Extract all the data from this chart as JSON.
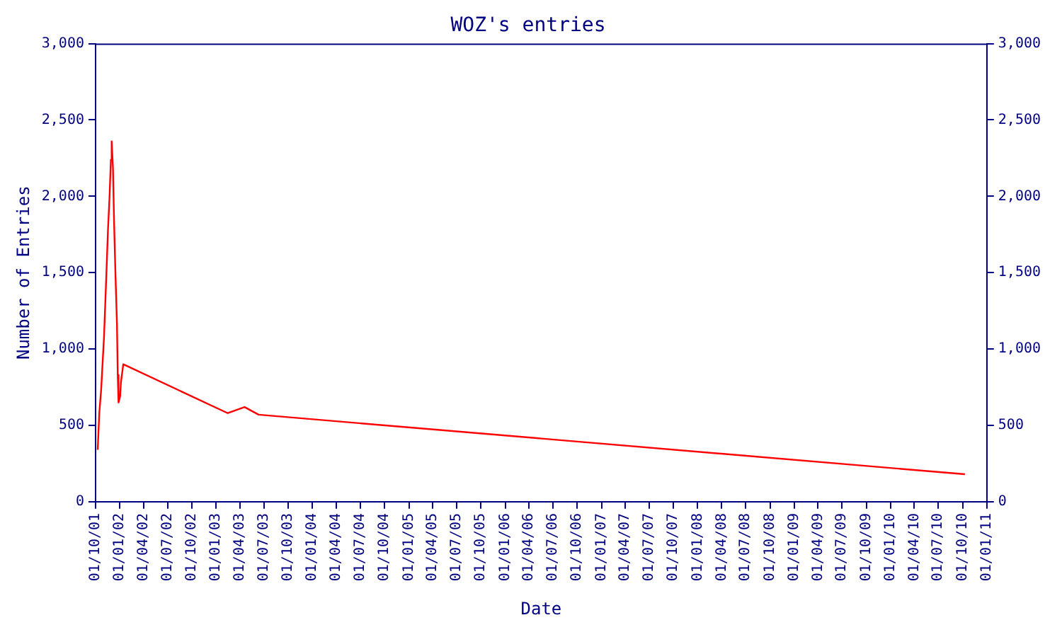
{
  "chart_data": {
    "type": "line",
    "title": "WOZ's entries",
    "xlabel": "Date",
    "ylabel": "Number of Entries",
    "x": [
      "2001-10-09",
      "2001-10-15",
      "2001-10-22",
      "2001-10-27",
      "2001-11-02",
      "2001-11-07",
      "2001-11-12",
      "2001-11-17",
      "2001-11-23",
      "2001-11-28",
      "2001-12-01",
      "2001-12-06",
      "2001-12-10",
      "2001-12-15",
      "2001-12-21",
      "2001-12-24",
      "2001-12-27",
      "2002-01-02",
      "2002-01-05",
      "2002-01-11",
      "2002-01-14",
      "2003-02-14",
      "2003-04-19",
      "2003-06-11",
      "2010-10-10"
    ],
    "series": [
      {
        "color": "#ff0000",
        "values": [
          340,
          580,
          730,
          890,
          1080,
          1310,
          1540,
          1780,
          2000,
          2240,
          2360,
          2180,
          1840,
          1510,
          1170,
          830,
          650,
          690,
          780,
          860,
          900,
          580,
          620,
          570,
          180
        ]
      }
    ],
    "xlim": [
      "2001-10-01",
      "2011-01-01"
    ],
    "xticks": [
      {
        "value": "2001-10-01",
        "label": "01/10/01"
      },
      {
        "value": "2002-01-01",
        "label": "01/01/02"
      },
      {
        "value": "2002-04-01",
        "label": "01/04/02"
      },
      {
        "value": "2002-07-01",
        "label": "01/07/02"
      },
      {
        "value": "2002-10-01",
        "label": "01/10/02"
      },
      {
        "value": "2003-01-01",
        "label": "01/01/03"
      },
      {
        "value": "2003-04-01",
        "label": "01/04/03"
      },
      {
        "value": "2003-07-01",
        "label": "01/07/03"
      },
      {
        "value": "2003-10-01",
        "label": "01/10/03"
      },
      {
        "value": "2004-01-01",
        "label": "01/01/04"
      },
      {
        "value": "2004-04-01",
        "label": "01/04/04"
      },
      {
        "value": "2004-07-01",
        "label": "01/07/04"
      },
      {
        "value": "2004-10-01",
        "label": "01/10/04"
      },
      {
        "value": "2005-01-01",
        "label": "01/01/05"
      },
      {
        "value": "2005-04-01",
        "label": "01/04/05"
      },
      {
        "value": "2005-07-01",
        "label": "01/07/05"
      },
      {
        "value": "2005-10-01",
        "label": "01/10/05"
      },
      {
        "value": "2006-01-01",
        "label": "01/01/06"
      },
      {
        "value": "2006-04-01",
        "label": "01/04/06"
      },
      {
        "value": "2006-07-01",
        "label": "01/07/06"
      },
      {
        "value": "2006-10-01",
        "label": "01/10/06"
      },
      {
        "value": "2007-01-01",
        "label": "01/01/07"
      },
      {
        "value": "2007-04-01",
        "label": "01/04/07"
      },
      {
        "value": "2007-07-01",
        "label": "01/07/07"
      },
      {
        "value": "2007-10-01",
        "label": "01/10/07"
      },
      {
        "value": "2008-01-01",
        "label": "01/01/08"
      },
      {
        "value": "2008-04-01",
        "label": "01/04/08"
      },
      {
        "value": "2008-07-01",
        "label": "01/07/08"
      },
      {
        "value": "2008-10-01",
        "label": "01/10/08"
      },
      {
        "value": "2009-01-01",
        "label": "01/01/09"
      },
      {
        "value": "2009-04-01",
        "label": "01/04/09"
      },
      {
        "value": "2009-07-01",
        "label": "01/07/09"
      },
      {
        "value": "2009-10-01",
        "label": "01/10/09"
      },
      {
        "value": "2010-01-01",
        "label": "01/01/10"
      },
      {
        "value": "2010-04-01",
        "label": "01/04/10"
      },
      {
        "value": "2010-07-01",
        "label": "01/07/10"
      },
      {
        "value": "2010-10-01",
        "label": "01/10/10"
      },
      {
        "value": "2011-01-01",
        "label": "01/01/11"
      }
    ],
    "ylim": [
      0,
      3000
    ],
    "yticks": [
      0,
      500,
      {
        "value": 1000,
        "label": "1,000"
      },
      {
        "value": 1500,
        "label": "1,500"
      },
      {
        "value": 2000,
        "label": "2,000"
      },
      {
        "value": 2500,
        "label": "2,500"
      },
      {
        "value": 3000,
        "label": "3,000"
      }
    ],
    "y2lim": [
      0,
      3000
    ],
    "y2ticks": [
      0,
      500,
      {
        "value": 1000,
        "label": "1,000"
      },
      {
        "value": 1500,
        "label": "1,500"
      },
      {
        "value": 2000,
        "label": "2,000"
      },
      {
        "value": 2500,
        "label": "2,500"
      },
      {
        "value": 3000,
        "label": "3,000"
      }
    ]
  }
}
